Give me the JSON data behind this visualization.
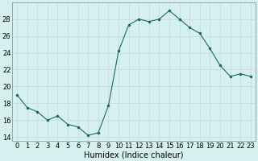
{
  "x": [
    0,
    1,
    2,
    3,
    4,
    5,
    6,
    7,
    8,
    9,
    10,
    11,
    12,
    13,
    14,
    15,
    16,
    17,
    18,
    19,
    20,
    21,
    22,
    23
  ],
  "y": [
    19.0,
    17.5,
    17.0,
    16.0,
    16.5,
    15.5,
    15.2,
    14.2,
    14.5,
    17.7,
    24.2,
    27.3,
    28.0,
    27.7,
    28.0,
    29.0,
    28.0,
    27.0,
    26.3,
    24.5,
    22.5,
    21.2,
    21.5,
    21.2
  ],
  "line_color": "#1a6b5a",
  "marker_color": "#1a6b5a",
  "bg_color": "#d6f0f0",
  "grid_color": "#c8dede",
  "xlabel": "Humidex (Indice chaleur)",
  "xlabel_fontsize": 7,
  "tick_fontsize": 6,
  "ylim": [
    13.5,
    30.0
  ],
  "xlim": [
    -0.5,
    23.5
  ],
  "yticks": [
    14,
    16,
    18,
    20,
    22,
    24,
    26,
    28
  ],
  "xticks": [
    0,
    1,
    2,
    3,
    4,
    5,
    6,
    7,
    8,
    9,
    10,
    11,
    12,
    13,
    14,
    15,
    16,
    17,
    18,
    19,
    20,
    21,
    22,
    23
  ]
}
